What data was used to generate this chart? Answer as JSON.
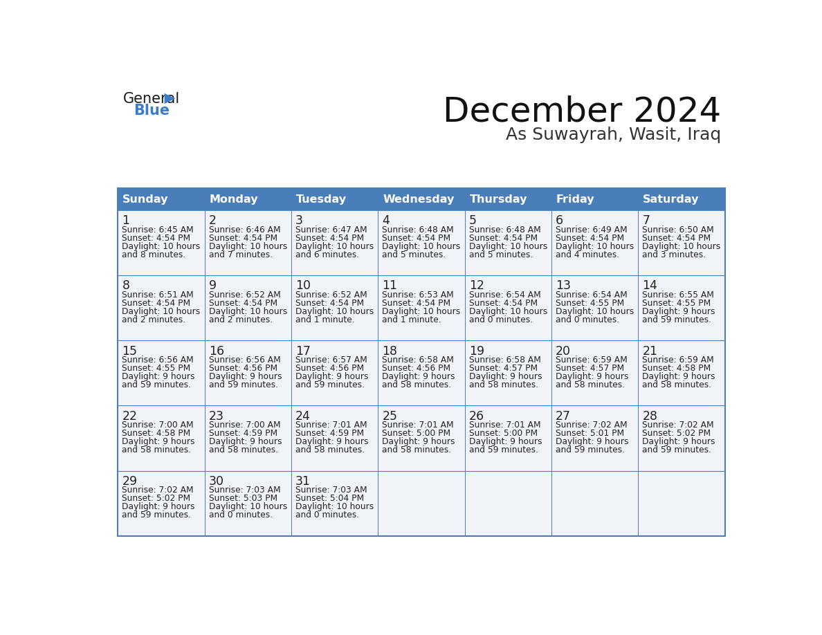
{
  "title": "December 2024",
  "subtitle": "As Suwayrah, Wasit, Iraq",
  "days_of_week": [
    "Sunday",
    "Monday",
    "Tuesday",
    "Wednesday",
    "Thursday",
    "Friday",
    "Saturday"
  ],
  "header_bg": "#4A7EBB",
  "header_text": "#FFFFFF",
  "cell_bg": "#F0F4F8",
  "border_color": "#4A7EBB",
  "day_number_color": "#222222",
  "text_color": "#222222",
  "calendar_data": [
    [
      {
        "day": "1",
        "sunrise": "6:45 AM",
        "sunset": "4:54 PM",
        "daylight_line1": "10 hours",
        "daylight_line2": "and 8 minutes."
      },
      {
        "day": "2",
        "sunrise": "6:46 AM",
        "sunset": "4:54 PM",
        "daylight_line1": "10 hours",
        "daylight_line2": "and 7 minutes."
      },
      {
        "day": "3",
        "sunrise": "6:47 AM",
        "sunset": "4:54 PM",
        "daylight_line1": "10 hours",
        "daylight_line2": "and 6 minutes."
      },
      {
        "day": "4",
        "sunrise": "6:48 AM",
        "sunset": "4:54 PM",
        "daylight_line1": "10 hours",
        "daylight_line2": "and 5 minutes."
      },
      {
        "day": "5",
        "sunrise": "6:48 AM",
        "sunset": "4:54 PM",
        "daylight_line1": "10 hours",
        "daylight_line2": "and 5 minutes."
      },
      {
        "day": "6",
        "sunrise": "6:49 AM",
        "sunset": "4:54 PM",
        "daylight_line1": "10 hours",
        "daylight_line2": "and 4 minutes."
      },
      {
        "day": "7",
        "sunrise": "6:50 AM",
        "sunset": "4:54 PM",
        "daylight_line1": "10 hours",
        "daylight_line2": "and 3 minutes."
      }
    ],
    [
      {
        "day": "8",
        "sunrise": "6:51 AM",
        "sunset": "4:54 PM",
        "daylight_line1": "10 hours",
        "daylight_line2": "and 2 minutes."
      },
      {
        "day": "9",
        "sunrise": "6:52 AM",
        "sunset": "4:54 PM",
        "daylight_line1": "10 hours",
        "daylight_line2": "and 2 minutes."
      },
      {
        "day": "10",
        "sunrise": "6:52 AM",
        "sunset": "4:54 PM",
        "daylight_line1": "10 hours",
        "daylight_line2": "and 1 minute."
      },
      {
        "day": "11",
        "sunrise": "6:53 AM",
        "sunset": "4:54 PM",
        "daylight_line1": "10 hours",
        "daylight_line2": "and 1 minute."
      },
      {
        "day": "12",
        "sunrise": "6:54 AM",
        "sunset": "4:54 PM",
        "daylight_line1": "10 hours",
        "daylight_line2": "and 0 minutes."
      },
      {
        "day": "13",
        "sunrise": "6:54 AM",
        "sunset": "4:55 PM",
        "daylight_line1": "10 hours",
        "daylight_line2": "and 0 minutes."
      },
      {
        "day": "14",
        "sunrise": "6:55 AM",
        "sunset": "4:55 PM",
        "daylight_line1": "9 hours",
        "daylight_line2": "and 59 minutes."
      }
    ],
    [
      {
        "day": "15",
        "sunrise": "6:56 AM",
        "sunset": "4:55 PM",
        "daylight_line1": "9 hours",
        "daylight_line2": "and 59 minutes."
      },
      {
        "day": "16",
        "sunrise": "6:56 AM",
        "sunset": "4:56 PM",
        "daylight_line1": "9 hours",
        "daylight_line2": "and 59 minutes."
      },
      {
        "day": "17",
        "sunrise": "6:57 AM",
        "sunset": "4:56 PM",
        "daylight_line1": "9 hours",
        "daylight_line2": "and 59 minutes."
      },
      {
        "day": "18",
        "sunrise": "6:58 AM",
        "sunset": "4:56 PM",
        "daylight_line1": "9 hours",
        "daylight_line2": "and 58 minutes."
      },
      {
        "day": "19",
        "sunrise": "6:58 AM",
        "sunset": "4:57 PM",
        "daylight_line1": "9 hours",
        "daylight_line2": "and 58 minutes."
      },
      {
        "day": "20",
        "sunrise": "6:59 AM",
        "sunset": "4:57 PM",
        "daylight_line1": "9 hours",
        "daylight_line2": "and 58 minutes."
      },
      {
        "day": "21",
        "sunrise": "6:59 AM",
        "sunset": "4:58 PM",
        "daylight_line1": "9 hours",
        "daylight_line2": "and 58 minutes."
      }
    ],
    [
      {
        "day": "22",
        "sunrise": "7:00 AM",
        "sunset": "4:58 PM",
        "daylight_line1": "9 hours",
        "daylight_line2": "and 58 minutes."
      },
      {
        "day": "23",
        "sunrise": "7:00 AM",
        "sunset": "4:59 PM",
        "daylight_line1": "9 hours",
        "daylight_line2": "and 58 minutes."
      },
      {
        "day": "24",
        "sunrise": "7:01 AM",
        "sunset": "4:59 PM",
        "daylight_line1": "9 hours",
        "daylight_line2": "and 58 minutes."
      },
      {
        "day": "25",
        "sunrise": "7:01 AM",
        "sunset": "5:00 PM",
        "daylight_line1": "9 hours",
        "daylight_line2": "and 58 minutes."
      },
      {
        "day": "26",
        "sunrise": "7:01 AM",
        "sunset": "5:00 PM",
        "daylight_line1": "9 hours",
        "daylight_line2": "and 59 minutes."
      },
      {
        "day": "27",
        "sunrise": "7:02 AM",
        "sunset": "5:01 PM",
        "daylight_line1": "9 hours",
        "daylight_line2": "and 59 minutes."
      },
      {
        "day": "28",
        "sunrise": "7:02 AM",
        "sunset": "5:02 PM",
        "daylight_line1": "9 hours",
        "daylight_line2": "and 59 minutes."
      }
    ],
    [
      {
        "day": "29",
        "sunrise": "7:02 AM",
        "sunset": "5:02 PM",
        "daylight_line1": "9 hours",
        "daylight_line2": "and 59 minutes."
      },
      {
        "day": "30",
        "sunrise": "7:03 AM",
        "sunset": "5:03 PM",
        "daylight_line1": "10 hours",
        "daylight_line2": "and 0 minutes."
      },
      {
        "day": "31",
        "sunrise": "7:03 AM",
        "sunset": "5:04 PM",
        "daylight_line1": "10 hours",
        "daylight_line2": "and 0 minutes."
      },
      null,
      null,
      null,
      null
    ]
  ]
}
